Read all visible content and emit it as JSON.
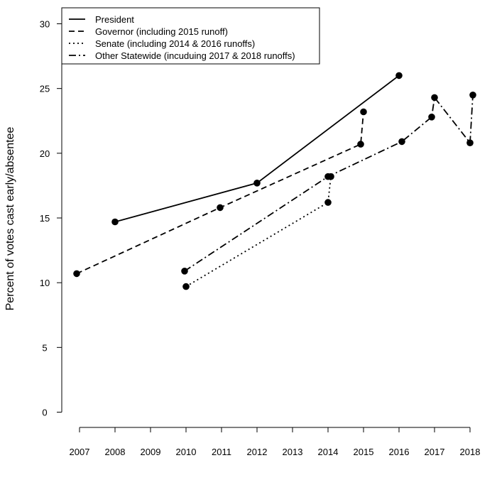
{
  "chart_data": {
    "type": "line",
    "title": "",
    "xlabel": "",
    "ylabel": "Percent of votes cast early/absentee",
    "ylim": [
      0,
      30
    ],
    "yticks": [
      0,
      5,
      10,
      15,
      20,
      25,
      30
    ],
    "xticks": [
      "2007",
      "2008",
      "2009",
      "2010",
      "2011",
      "2012",
      "2013",
      "2014",
      "2015",
      "2016",
      "2017",
      "2018"
    ],
    "legend_position": "top-left",
    "grid": false,
    "series": [
      {
        "name": "President",
        "line_style": "solid",
        "points": [
          {
            "x": 2008,
            "y": 14.7
          },
          {
            "x": 2012,
            "y": 17.7
          },
          {
            "x": 2016,
            "y": 26.0
          }
        ]
      },
      {
        "name": "Governor (including 2015 runoff)",
        "line_style": "dashed",
        "points": [
          {
            "x": 2007,
            "y": 10.7
          },
          {
            "x": 2011,
            "y": 15.8
          },
          {
            "x": 2015,
            "y": 20.7
          },
          {
            "x": 2015,
            "y": 23.2
          }
        ]
      },
      {
        "name": "Senate (including 2014 & 2016 runoffs)",
        "line_style": "dotted",
        "points": [
          {
            "x": 2010,
            "y": 9.7
          },
          {
            "x": 2014,
            "y": 16.2
          },
          {
            "x": 2014,
            "y": 18.2
          }
        ]
      },
      {
        "name": "Other Statewide (incuduing 2017 & 2018 runoffs)",
        "line_style": "dashdot",
        "points": [
          {
            "x": 2010,
            "y": 10.9
          },
          {
            "x": 2014,
            "y": 18.2
          },
          {
            "x": 2016,
            "y": 20.9
          },
          {
            "x": 2017,
            "y": 22.8
          },
          {
            "x": 2017,
            "y": 24.3
          },
          {
            "x": 2018,
            "y": 20.8
          },
          {
            "x": 2018,
            "y": 24.5
          }
        ]
      }
    ]
  }
}
